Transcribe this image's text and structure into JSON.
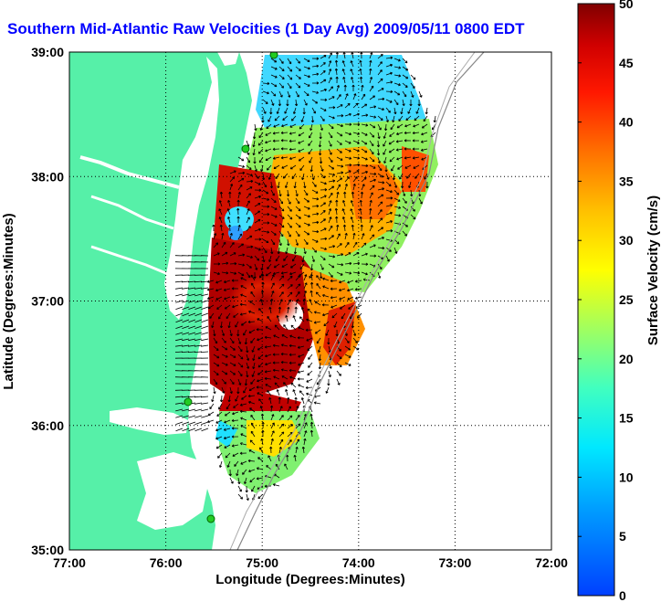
{
  "title": "Southern Mid-Atlantic Raw Velocities (1 Day Avg) 2009/05/11 0800 EDT",
  "map": {
    "x_label": "Longitude (Degrees:Minutes)",
    "y_label": "Latitude (Degrees:Minutes)",
    "x_ticks": [
      "77:00",
      "76:00",
      "75:00",
      "74:00",
      "73:00",
      "72:00"
    ],
    "y_ticks": [
      "39:00",
      "38:00",
      "37:00",
      "36:00",
      "35:00"
    ],
    "lon_range": [
      -77,
      -72
    ],
    "lat_range": [
      35,
      39
    ],
    "grid": "dotted",
    "land_color": "#56f0a8",
    "water_color": "#ffffff",
    "station_color": "#22cc22"
  },
  "colorbar": {
    "label": "Surface Velocity (cm/s)",
    "ticks": [
      "50",
      "45",
      "40",
      "35",
      "30",
      "25",
      "20",
      "15",
      "10",
      "5",
      "0"
    ],
    "range": [
      0,
      50
    ],
    "colormap": "jet"
  }
}
